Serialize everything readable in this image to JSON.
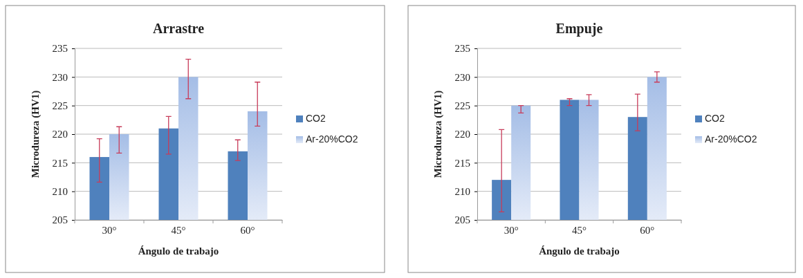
{
  "chart_data": [
    {
      "type": "bar",
      "title": "Arrastre",
      "xlabel": "Ángulo de trabajo",
      "ylabel": "Microdureza  (HV1)",
      "categories": [
        "30°",
        "45°",
        "60°"
      ],
      "ylim": [
        205,
        235
      ],
      "yticks": [
        205,
        210,
        215,
        220,
        225,
        230,
        235
      ],
      "grid": "y",
      "legend": "right",
      "series": [
        {
          "name": "CO2",
          "color": "#4f81bd",
          "values": [
            216,
            221,
            217
          ],
          "errors": [
            [
              211.6,
              219.2
            ],
            [
              216.5,
              223.1
            ],
            [
              215.4,
              219
            ]
          ]
        },
        {
          "name": "Ar-20%CO2",
          "color": "#a4bde6",
          "values": [
            220,
            230,
            224
          ],
          "errors": [
            [
              216.7,
              221.3
            ],
            [
              226.2,
              233.1
            ],
            [
              221.4,
              229.1
            ]
          ]
        }
      ]
    },
    {
      "type": "bar",
      "title": "Empuje",
      "xlabel": "Ángulo de trabajo",
      "ylabel": "Microdureza  (HV1)",
      "categories": [
        "30°",
        "45°",
        "60°"
      ],
      "ylim": [
        205,
        235
      ],
      "yticks": [
        205,
        210,
        215,
        220,
        225,
        230,
        235
      ],
      "grid": "y",
      "legend": "right",
      "series": [
        {
          "name": "CO2",
          "color": "#4f81bd",
          "values": [
            212,
            226,
            223
          ],
          "errors": [
            [
              206.4,
              220.8
            ],
            [
              225,
              226.2
            ],
            [
              220.6,
              227
            ]
          ]
        },
        {
          "name": "Ar-20%CO2",
          "color": "#a4bde6",
          "values": [
            225,
            226,
            230
          ],
          "errors": [
            [
              223.7,
              225
            ],
            [
              225,
              226.9
            ],
            [
              229.1,
              230.9
            ]
          ]
        }
      ]
    }
  ]
}
